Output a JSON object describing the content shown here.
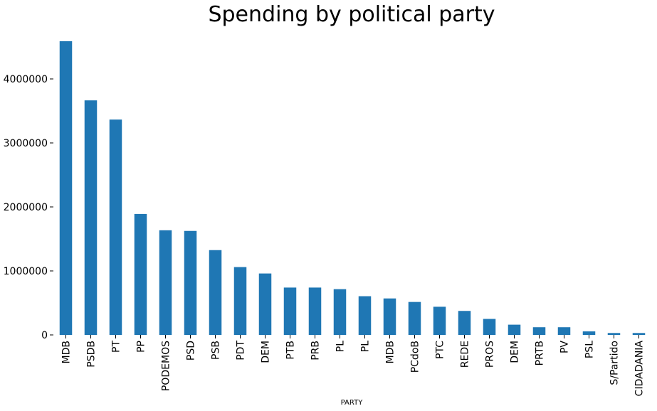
{
  "chart_data": {
    "type": "bar",
    "title": "Spending by political party",
    "xlabel": "PARTY",
    "ylabel": "",
    "categories": [
      "MDB",
      "PSDB",
      "PT",
      "PP",
      "PODEMOS",
      "PSD",
      "PSB",
      "PDT",
      "DEM",
      "PTB",
      "PRB",
      "PL",
      "PL",
      "MDB",
      "PCdoB",
      "PTC",
      "REDE",
      "PROS",
      "DEM",
      "PRTB",
      "PV",
      "PSL",
      "S/Partido",
      "CIDADANIA"
    ],
    "values": [
      4590000,
      3665000,
      3365000,
      1890000,
      1635000,
      1625000,
      1325000,
      1060000,
      960000,
      740000,
      740000,
      715000,
      605000,
      570000,
      515000,
      440000,
      375000,
      250000,
      160000,
      120000,
      120000,
      55000,
      30000,
      30000
    ],
    "yticks": [
      0,
      1000000,
      2000000,
      3000000,
      4000000
    ],
    "ytick_labels": [
      "0",
      "1000000",
      "2000000",
      "3000000",
      "4000000"
    ],
    "ylim": [
      0,
      4600000
    ],
    "grid": false,
    "colors": {
      "bar": "#1f77b4"
    }
  }
}
